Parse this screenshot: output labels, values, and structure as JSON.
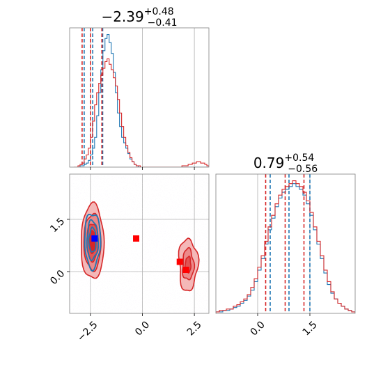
{
  "chart_data": [
    {
      "type": "histogram",
      "panel": "top-left marginal",
      "title": {
        "value": "−2.39",
        "sup": "+0.48",
        "sub": "−0.41"
      },
      "xlim": [
        -3.5,
        3.2
      ],
      "xticks": [
        -2.5,
        0.0,
        2.5
      ],
      "grid": true,
      "series": [
        {
          "color": "#1f77b4",
          "bin_edges": [
            -3.3,
            3.2
          ],
          "counts": [
            0,
            0,
            0,
            1,
            1,
            2,
            3,
            5,
            9,
            14,
            22,
            38,
            55,
            72,
            86,
            95,
            98,
            92,
            84,
            70,
            55,
            40,
            30,
            22,
            18,
            14,
            10,
            6,
            4,
            2,
            1,
            0,
            0,
            0,
            0,
            0,
            0,
            0,
            0,
            0,
            0,
            0,
            0,
            0,
            0,
            0,
            0,
            0,
            0,
            0,
            0,
            0,
            0,
            0,
            0,
            0,
            0,
            0,
            0,
            0,
            0,
            0,
            0,
            0,
            0
          ],
          "quantiles": [
            -2.8,
            -2.39,
            -1.91
          ]
        },
        {
          "color": "#d62728",
          "bin_edges": [
            -3.3,
            3.2
          ],
          "counts": [
            0,
            0,
            1,
            2,
            3,
            6,
            9,
            14,
            22,
            34,
            46,
            55,
            62,
            68,
            73,
            78,
            80,
            76,
            72,
            66,
            60,
            50,
            40,
            30,
            22,
            16,
            11,
            7,
            4,
            2,
            1,
            1,
            0,
            0,
            0,
            0,
            0,
            0,
            0,
            0,
            0,
            0,
            0,
            0,
            0,
            0,
            0,
            0,
            0,
            0,
            0,
            0,
            1,
            1,
            1,
            2,
            2,
            3,
            3,
            4,
            4,
            3,
            3,
            2,
            1
          ],
          "quantiles": [
            -2.9,
            -2.5,
            -1.95
          ]
        }
      ]
    },
    {
      "type": "contour",
      "panel": "bottom-left joint",
      "xlim": [
        -3.5,
        3.2
      ],
      "ylim": [
        -1.2,
        2.8
      ],
      "xticks": [
        -2.5,
        0.0,
        2.5
      ],
      "yticks": [
        0.0,
        1.5
      ],
      "grid": true,
      "series": [
        {
          "color": "#1f77b4",
          "center": [
            -2.4,
            0.9
          ],
          "spread": [
            0.45,
            0.65
          ]
        },
        {
          "color": "#d62728",
          "center": [
            -2.4,
            0.85
          ],
          "spread": [
            0.55,
            0.75
          ],
          "secondary_mode": [
            2.2,
            0.2
          ]
        }
      ],
      "markers": [
        {
          "color": "#0000ff",
          "x": -2.3,
          "y": 0.95
        },
        {
          "color": "#ff0000",
          "x": -0.3,
          "y": 0.95
        },
        {
          "color": "#ff0000",
          "x": 1.8,
          "y": 0.28
        },
        {
          "color": "#ff0000",
          "x": 2.1,
          "y": 0.05
        }
      ]
    },
    {
      "type": "histogram",
      "panel": "bottom-right marginal",
      "title": {
        "value": "0.79",
        "sup": "+0.54",
        "sub": "−0.56"
      },
      "xlim": [
        -1.2,
        2.8
      ],
      "xticks": [
        0.0,
        1.5
      ],
      "grid": true,
      "series": [
        {
          "color": "#1f77b4",
          "bin_edges": [
            -1.2,
            2.8
          ],
          "counts": [
            1,
            1,
            2,
            2,
            3,
            4,
            5,
            7,
            9,
            12,
            16,
            22,
            30,
            38,
            48,
            58,
            66,
            74,
            80,
            84,
            86,
            88,
            90,
            88,
            86,
            82,
            76,
            68,
            58,
            48,
            38,
            28,
            20,
            14,
            10,
            7,
            5,
            3,
            2,
            1
          ],
          "quantiles": [
            0.36,
            0.9,
            1.5
          ]
        },
        {
          "color": "#d62728",
          "bin_edges": [
            -1.2,
            2.8
          ],
          "counts": [
            1,
            2,
            2,
            3,
            3,
            5,
            6,
            8,
            10,
            13,
            18,
            24,
            32,
            40,
            50,
            60,
            68,
            76,
            82,
            86,
            88,
            90,
            92,
            90,
            88,
            84,
            78,
            70,
            60,
            50,
            40,
            30,
            22,
            15,
            10,
            7,
            5,
            3,
            2,
            1
          ],
          "quantiles": [
            0.23,
            0.79,
            1.33
          ]
        }
      ]
    }
  ]
}
